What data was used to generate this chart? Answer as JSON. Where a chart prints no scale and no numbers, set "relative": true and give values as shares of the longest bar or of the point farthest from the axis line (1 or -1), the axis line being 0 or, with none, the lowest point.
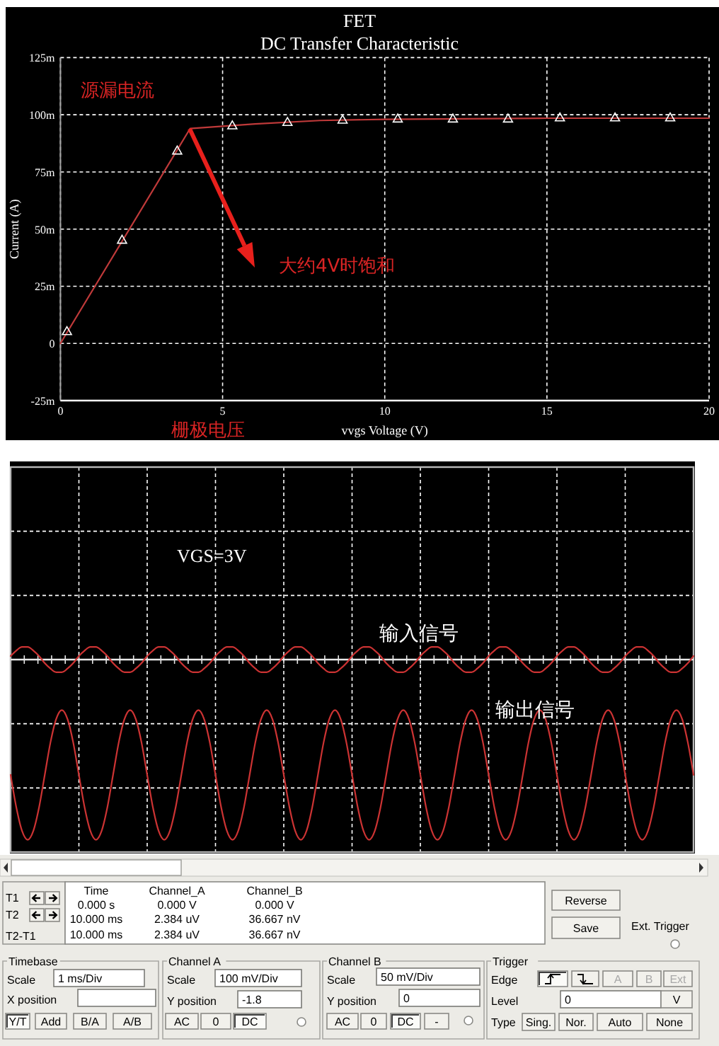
{
  "chart_data": [
    {
      "type": "line",
      "title": "FET",
      "subtitle": "DC Transfer Characteristic",
      "xlabel": "vvgs Voltage (V)",
      "ylabel": "Current (A)",
      "xlim": [
        0,
        20
      ],
      "xticks": [
        0,
        5,
        10,
        15,
        20
      ],
      "ylim": [
        -25,
        125
      ],
      "yticks": [
        {
          "value": -25,
          "label": "-25m"
        },
        0,
        {
          "value": 25,
          "label": "25m"
        },
        {
          "value": 50,
          "label": "50m"
        },
        {
          "value": 75,
          "label": "75m"
        },
        {
          "value": 100,
          "label": "100m"
        },
        {
          "value": 125,
          "label": "125m"
        }
      ],
      "grid": true,
      "series": [
        {
          "type": "line",
          "color": "#c03a3a",
          "marker": "none",
          "x": [
            0,
            4,
            5,
            6,
            8,
            10,
            15,
            20
          ],
          "values": [
            0,
            94,
            95,
            96,
            97.5,
            98,
            98.5,
            98.5
          ]
        },
        {
          "type": "scatter",
          "color": "#ffffff",
          "marker": "triangle",
          "x": [
            0.2,
            1.9,
            3.6,
            5.3,
            7,
            8.7,
            10.4,
            12.1,
            13.8,
            15.4,
            17.1,
            18.8
          ],
          "values": [
            5,
            45,
            84,
            95,
            96.5,
            97.5,
            98,
            98,
            98,
            98.5,
            98.5,
            98.5
          ]
        }
      ],
      "annotations": [
        "源漏电流",
        "大约4V时饱和",
        "栅极电压"
      ]
    },
    {
      "type": "line",
      "relative": true,
      "grid": true,
      "categories": [
        null,
        null,
        null,
        null,
        null,
        null,
        null,
        null,
        null,
        null,
        null,
        null,
        null,
        null,
        null,
        null,
        null,
        null,
        null,
        null,
        null,
        null,
        null,
        null,
        null,
        null,
        null,
        null,
        null,
        null,
        null,
        null,
        null,
        null,
        null,
        null,
        null,
        null,
        null,
        null,
        null,
        null,
        null,
        null,
        null,
        null,
        null,
        null,
        null,
        null,
        null,
        null,
        null,
        null,
        null,
        null,
        null,
        null,
        null,
        null,
        null,
        null,
        null,
        null,
        null,
        null,
        null,
        null,
        null,
        null,
        null,
        null,
        null,
        null,
        null,
        null,
        null,
        null,
        null,
        null,
        null,
        null,
        null,
        null,
        null,
        null,
        null,
        null,
        null,
        null,
        null,
        null,
        null,
        null,
        null,
        null,
        null,
        null,
        null,
        null,
        null,
        null,
        null,
        null,
        null,
        null,
        null,
        null,
        null,
        null,
        null,
        null,
        null,
        null,
        null,
        null,
        null,
        null,
        null,
        null,
        null
      ],
      "series": [
        {
          "name": "输入信号",
          "color": "#cc3333",
          "values": [
            0.02,
            0.05,
            0.07,
            0.07,
            0.05,
            0.02,
            -0.02,
            -0.05,
            -0.07,
            -0.07,
            -0.05,
            -0.02,
            0.02,
            0.05,
            0.07,
            0.07,
            0.05,
            0.02,
            -0.02,
            -0.05,
            -0.07,
            -0.07,
            -0.05,
            -0.02,
            0.02,
            0.05,
            0.07,
            0.07,
            0.05,
            0.02,
            -0.02,
            -0.05,
            -0.07,
            -0.07,
            -0.05,
            -0.02,
            0.02,
            0.05,
            0.07,
            0.07,
            0.05,
            0.02,
            -0.02,
            -0.05,
            -0.07,
            -0.07,
            -0.05,
            -0.02,
            0.02,
            0.05,
            0.07,
            0.07,
            0.05,
            0.02,
            -0.02,
            -0.05,
            -0.07,
            -0.07,
            -0.05,
            -0.02,
            0.02,
            0.05,
            0.07,
            0.07,
            0.05,
            0.02,
            -0.02,
            -0.05,
            -0.07,
            -0.07,
            -0.05,
            -0.02,
            0.02,
            0.05,
            0.07,
            0.07,
            0.05,
            0.02,
            -0.02,
            -0.05,
            -0.07,
            -0.07,
            -0.05,
            -0.02,
            0.02,
            0.05,
            0.07,
            0.07,
            0.05,
            0.02,
            -0.02,
            -0.05,
            -0.07,
            -0.07,
            -0.05,
            -0.02,
            0.02,
            0.05,
            0.07,
            0.07,
            0.05,
            0.02,
            -0.02,
            -0.05,
            -0.07,
            -0.07,
            -0.05,
            -0.02,
            0.02,
            0.05,
            0.07,
            0.07,
            0.05,
            0.02,
            -0.02,
            -0.05,
            -0.07,
            -0.07,
            -0.05,
            -0.02,
            0.02
          ]
        },
        {
          "name": "输出信号",
          "color": "#cc3333",
          "values": [
            -0.64,
            -0.82,
            -0.95,
            -1,
            -0.95,
            -0.82,
            -0.64,
            -0.46,
            -0.33,
            -0.28,
            -0.33,
            -0.46,
            -0.64,
            -0.82,
            -0.95,
            -1,
            -0.95,
            -0.82,
            -0.64,
            -0.46,
            -0.33,
            -0.28,
            -0.33,
            -0.46,
            -0.64,
            -0.82,
            -0.95,
            -1,
            -0.95,
            -0.82,
            -0.64,
            -0.46,
            -0.33,
            -0.28,
            -0.33,
            -0.46,
            -0.64,
            -0.82,
            -0.95,
            -1,
            -0.95,
            -0.82,
            -0.64,
            -0.46,
            -0.33,
            -0.28,
            -0.33,
            -0.46,
            -0.64,
            -0.82,
            -0.95,
            -1,
            -0.95,
            -0.82,
            -0.64,
            -0.46,
            -0.33,
            -0.28,
            -0.33,
            -0.46,
            -0.64,
            -0.82,
            -0.95,
            -1,
            -0.95,
            -0.82,
            -0.64,
            -0.46,
            -0.33,
            -0.28,
            -0.33,
            -0.46,
            -0.64,
            -0.82,
            -0.95,
            -1,
            -0.95,
            -0.82,
            -0.64,
            -0.46,
            -0.33,
            -0.28,
            -0.33,
            -0.46,
            -0.64,
            -0.82,
            -0.95,
            -1,
            -0.95,
            -0.82,
            -0.64,
            -0.46,
            -0.33,
            -0.28,
            -0.33,
            -0.46,
            -0.64,
            -0.82,
            -0.95,
            -1,
            -0.95,
            -0.82,
            -0.64,
            -0.46,
            -0.33,
            -0.28,
            -0.33,
            -0.46,
            -0.64,
            -0.82,
            -0.95,
            -1,
            -0.95,
            -0.82,
            -0.64,
            -0.46,
            -0.33,
            -0.28,
            -0.33,
            -0.46,
            -0.64
          ]
        }
      ],
      "annotations": [
        "VGS=3V"
      ]
    },
    {
      "type": "other",
      "annotations": [
        "T1",
        "T2",
        "T2-T1",
        "Time",
        "Channel_A",
        "Channel_B",
        "0.000 s",
        "0.000 V",
        "0.000 V",
        "10.000 ms",
        "2.384 uV",
        "36.667 nV",
        "10.000 ms",
        "2.384 uV",
        "36.667 nV",
        "Reverse",
        "Save",
        "Ext. Trigger",
        "Timebase",
        "Scale",
        "1 ms/Div",
        "X position",
        "Y/T",
        "Add",
        "B/A",
        "A/B",
        "Channel A",
        "Scale",
        "100 mV/Div",
        "Y position",
        "-1.8",
        "AC",
        "0",
        "DC",
        "Channel B",
        "Scale",
        "50 mV/Div",
        "Y position",
        "0",
        "AC",
        "0",
        "DC",
        "-",
        "Trigger",
        "Edge",
        "A",
        "B",
        "Ext",
        "Level",
        "0",
        "V",
        "Type",
        "Sing.",
        "Nor.",
        "Auto",
        "None"
      ]
    }
  ]
}
